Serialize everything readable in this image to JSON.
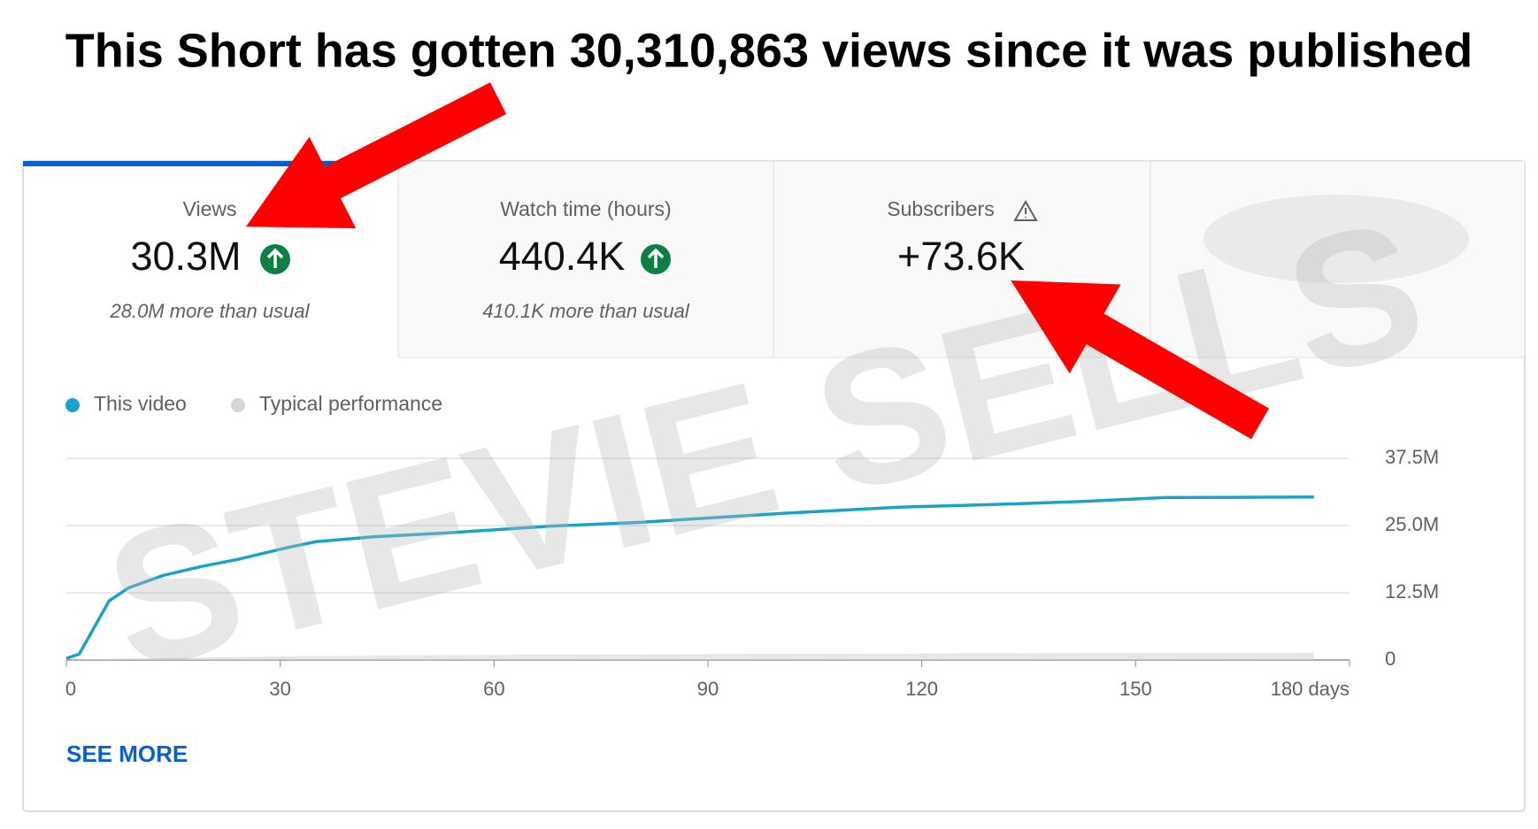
{
  "header": {
    "title": "This Short has gotten 30,310,863 views since it was published"
  },
  "watermark": "STEVIE SELLS",
  "cards": [
    {
      "label": "Views",
      "value": "30.3M",
      "note": "28.0M more than usual"
    },
    {
      "label": "Watch time (hours)",
      "value": "440.4K",
      "note": "410.1K more than usual"
    },
    {
      "label": "Subscribers",
      "value": "+73.6K"
    }
  ],
  "see_more": "SEE MORE",
  "chart_data": {
    "type": "line",
    "x": [
      0,
      1.8,
      6,
      8.7,
      13.5,
      19,
      24,
      31,
      35,
      43,
      53,
      60,
      68,
      80.6,
      90,
      101,
      116.5,
      130,
      143,
      154,
      175
    ],
    "series": [
      {
        "name": "This video",
        "color": "#1aa3c8",
        "values": [
          0.3,
          1.1,
          11,
          13.4,
          15.7,
          17.4,
          18.7,
          20.9,
          22.0,
          22.9,
          23.6,
          24.2,
          24.9,
          25.6,
          26.4,
          27.3,
          28.4,
          28.9,
          29.5,
          30.2,
          30.3
        ]
      },
      {
        "name": "Typical performance",
        "color": "#d6d6d6",
        "area": true,
        "values": [
          0,
          0.1,
          0.2,
          0.3,
          0.4,
          0.5,
          0.6,
          0.7,
          0.75,
          0.8,
          0.9,
          0.95,
          1.0,
          1.05,
          1.1,
          1.15,
          1.2,
          1.25,
          1.3,
          1.3,
          1.35
        ]
      }
    ],
    "xlim": [
      0,
      180
    ],
    "xticks": [
      0,
      30,
      60,
      90,
      120,
      150,
      {
        "value": 180,
        "label": "180 days"
      }
    ],
    "ylim": [
      0,
      37.5
    ],
    "yticks": [
      0,
      {
        "value": 12.5,
        "label": "12.5M"
      },
      {
        "value": 25,
        "label": "25.0M"
      },
      {
        "value": 37.5,
        "label": "37.5M"
      }
    ],
    "grid": true
  }
}
